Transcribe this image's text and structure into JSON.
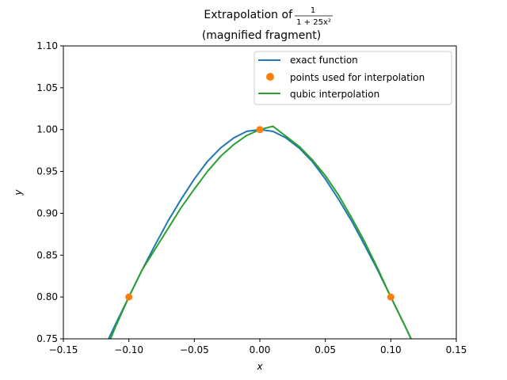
{
  "chart_data": {
    "type": "line",
    "title_prefix": "Extrapolation of",
    "title_fraction": {
      "numerator": "1",
      "denominator": "1 + 25x²"
    },
    "subtitle": "(magnified fragment)",
    "xlabel": "x",
    "ylabel": "y",
    "xlim": [
      -0.15,
      0.15
    ],
    "ylim": [
      0.75,
      1.1
    ],
    "xticks": [
      -0.15,
      -0.1,
      -0.05,
      0.0,
      0.05,
      0.1,
      0.15
    ],
    "xtick_labels": [
      "−0.15",
      "−0.10",
      "−0.05",
      "0.00",
      "0.05",
      "0.10",
      "0.15"
    ],
    "yticks": [
      0.75,
      0.8,
      0.85,
      0.9,
      0.95,
      1.0,
      1.05,
      1.1
    ],
    "ytick_labels": [
      "0.75",
      "0.80",
      "0.85",
      "0.90",
      "0.95",
      "1.00",
      "1.05",
      "1.10"
    ],
    "grid": false,
    "legend_position": "upper right",
    "series": [
      {
        "name": "exact function",
        "kind": "line",
        "color": "#1f77b4",
        "x": [
          -0.12,
          -0.11,
          -0.1,
          -0.09,
          -0.08,
          -0.07,
          -0.06,
          -0.05,
          -0.04,
          -0.03,
          -0.02,
          -0.01,
          0.0,
          0.01,
          0.02,
          0.03,
          0.04,
          0.05,
          0.06,
          0.07,
          0.08,
          0.09,
          0.1,
          0.11,
          0.12
        ],
        "y": [
          0.735,
          0.768,
          0.8,
          0.832,
          0.862,
          0.891,
          0.917,
          0.941,
          0.962,
          0.978,
          0.99,
          0.998,
          1.0,
          0.998,
          0.99,
          0.978,
          0.962,
          0.941,
          0.917,
          0.891,
          0.862,
          0.832,
          0.8,
          0.768,
          0.735
        ]
      },
      {
        "name": "points used for interpolation",
        "kind": "scatter",
        "color": "#ff7f0e",
        "x": [
          -0.1,
          0.0,
          0.1
        ],
        "y": [
          0.8,
          1.0,
          0.8
        ]
      },
      {
        "name": "qubic interpolation",
        "kind": "line",
        "color": "#2ca02c",
        "x": [
          -0.12,
          -0.11,
          -0.1,
          -0.09,
          -0.08,
          -0.07,
          -0.06,
          -0.05,
          -0.04,
          -0.03,
          -0.02,
          -0.01,
          0.0,
          0.01,
          0.02,
          0.03,
          0.04,
          0.05,
          0.06,
          0.07,
          0.08,
          0.09,
          0.1,
          0.11,
          0.12
        ],
        "y": [
          0.728,
          0.765,
          0.8,
          0.832,
          0.857,
          0.882,
          0.907,
          0.929,
          0.95,
          0.968,
          0.982,
          0.993,
          1.0,
          1.004,
          0.992,
          0.98,
          0.964,
          0.945,
          0.922,
          0.895,
          0.866,
          0.834,
          0.8,
          0.768,
          0.735
        ]
      }
    ]
  }
}
